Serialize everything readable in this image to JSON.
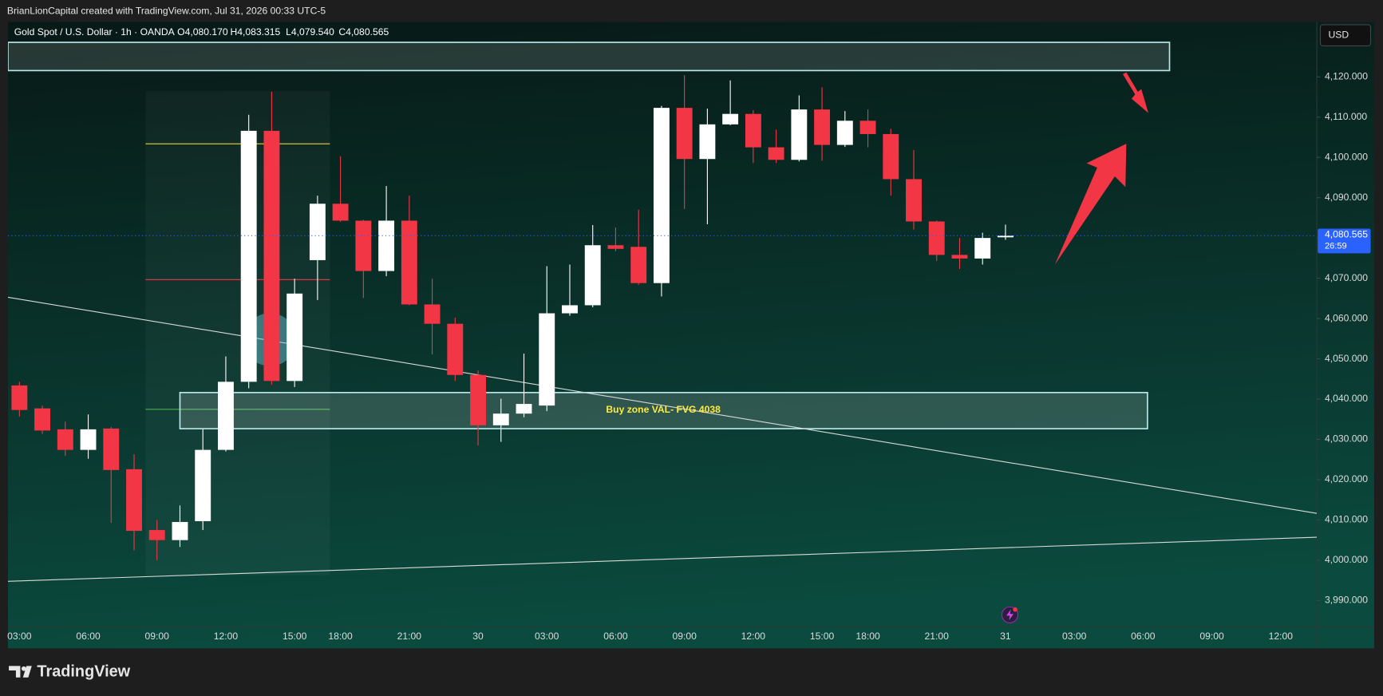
{
  "header": {
    "attribution": "BrianLionCapital created with TradingView.com, Jul 31, 2026 00:33 UTC-5",
    "brand": "TradingView"
  },
  "chart_data": {
    "type": "candlestick",
    "symbol": "Gold Spot / U.S. Dollar · 1h · OANDA",
    "ohlc_legend": [
      "O4,080.170",
      "H4,083.315",
      "L4,079.540",
      "C4,080.565"
    ],
    "currency": "USD",
    "annotation": "Buy zone VAL- FVG 4038",
    "last_price": {
      "value": 4080.565,
      "label": "4,080.565"
    },
    "countdown": "26:59",
    "colors": {
      "up": "#ffffff",
      "down": "#f23645"
    },
    "categories": [
      "03:00",
      null,
      null,
      "06:00",
      null,
      null,
      "09:00",
      null,
      null,
      "12:00",
      null,
      null,
      "15:00",
      null,
      "18:00",
      null,
      null,
      "21:00",
      null,
      null,
      "30",
      null,
      null,
      "03:00",
      null,
      null,
      "06:00",
      null,
      null,
      "09:00",
      null,
      null,
      "12:00",
      null,
      null,
      "15:00",
      null,
      "18:00",
      null,
      null,
      "21:00",
      null,
      null,
      "31",
      null,
      null,
      "03:00",
      null,
      null,
      "06:00",
      null,
      null,
      "09:00",
      null,
      null,
      "12:00",
      null
    ],
    "open": [
      4043.4,
      4037.7,
      4032.5,
      4027.4,
      4032.7,
      4022.6,
      4007.5,
      4005.0,
      4009.7,
      4027.4,
      4044.3,
      4106.6,
      4044.5,
      4074.5,
      4088.5,
      4084.3,
      4071.8,
      4084.3,
      4063.5,
      4058.7,
      4046.0,
      4033.5,
      4036.4,
      4038.4,
      4061.3,
      4063.3,
      4078.2,
      4077.8,
      4068.8,
      4112.3,
      4099.6,
      4108.2,
      4110.8,
      4102.5,
      4099.4,
      4111.9,
      4103.1,
      4109.1,
      4105.8,
      4094.6,
      4084.1,
      4075.8,
      4074.9,
      4080.17,
      null,
      null,
      null,
      null,
      null,
      null,
      null,
      null,
      null,
      null,
      null,
      null,
      null
    ],
    "high": [
      4044.3,
      4038.4,
      4034.4,
      4036.2,
      4033.1,
      4026.3,
      4010.0,
      4013.6,
      4032.5,
      4050.6,
      4110.6,
      4116.3,
      4069.9,
      4090.5,
      4100.3,
      4084.5,
      4092.9,
      4090.5,
      4069.9,
      4060.2,
      4047.1,
      4040.1,
      4051.3,
      4073.0,
      4073.4,
      4083.2,
      4082.6,
      4087.0,
      4112.8,
      4120.4,
      4112.1,
      4119.1,
      4111.7,
      4106.9,
      4115.4,
      4117.4,
      4111.5,
      4111.9,
      4107.1,
      4101.8,
      4084.3,
      4080.0,
      4081.3,
      4083.315,
      null,
      null,
      null,
      null,
      null,
      null,
      null,
      null,
      null,
      null,
      null,
      null,
      null
    ],
    "low": [
      4035.7,
      4031.4,
      4025.9,
      4025.2,
      4009.3,
      4002.5,
      4000.0,
      4003.3,
      4007.5,
      4027.0,
      4042.7,
      4043.6,
      4043.0,
      4064.6,
      4084.0,
      4065.1,
      4070.5,
      4063.3,
      4051.1,
      4044.5,
      4028.5,
      4029.4,
      4035.5,
      4037.0,
      4060.7,
      4062.8,
      4076.7,
      4068.4,
      4065.5,
      4087.2,
      4083.4,
      4108.0,
      4098.6,
      4098.6,
      4099.0,
      4099.2,
      4102.6,
      4102.5,
      4090.5,
      4082.1,
      4074.3,
      4072.3,
      4073.4,
      4079.54,
      null,
      null,
      null,
      null,
      null,
      null,
      null,
      null,
      null,
      null,
      null,
      null,
      null
    ],
    "close": [
      4037.3,
      4032.2,
      4027.4,
      4032.5,
      4022.4,
      4007.3,
      4005.0,
      4009.5,
      4027.4,
      4044.3,
      4106.6,
      4044.5,
      4066.2,
      4088.5,
      4084.3,
      4071.8,
      4084.3,
      4063.5,
      4058.7,
      4046.0,
      4033.5,
      4036.4,
      4038.8,
      4061.3,
      4063.3,
      4078.2,
      4077.3,
      4068.8,
      4112.3,
      4099.6,
      4108.2,
      4110.8,
      4102.5,
      4099.4,
      4111.9,
      4103.1,
      4109.1,
      4105.8,
      4094.6,
      4084.1,
      4075.8,
      4074.9,
      4080.0,
      4080.565,
      null,
      null,
      null,
      null,
      null,
      null,
      null,
      null,
      null,
      null,
      null,
      null,
      null
    ],
    "ylim": [
      3983.6,
      4133.6
    ],
    "yticks": [
      {
        "value": 3990,
        "label": "3,990.000"
      },
      {
        "value": 4000,
        "label": "4,000.000"
      },
      {
        "value": 4010,
        "label": "4,010.000"
      },
      {
        "value": 4020,
        "label": "4,020.000"
      },
      {
        "value": 4030,
        "label": "4,030.000"
      },
      {
        "value": 4040,
        "label": "4,040.000"
      },
      {
        "value": 4050,
        "label": "4,050.000"
      },
      {
        "value": 4060,
        "label": "4,060.000"
      },
      {
        "value": 4070,
        "label": "4,070.000"
      },
      {
        "value": 4080,
        "label": "4,080.000"
      },
      {
        "value": 4090,
        "label": "4,090.000"
      },
      {
        "value": 4100,
        "label": "4,100.000"
      },
      {
        "value": 4110,
        "label": "4,110.000"
      },
      {
        "value": 4120,
        "label": "4,120.000"
      }
    ]
  }
}
